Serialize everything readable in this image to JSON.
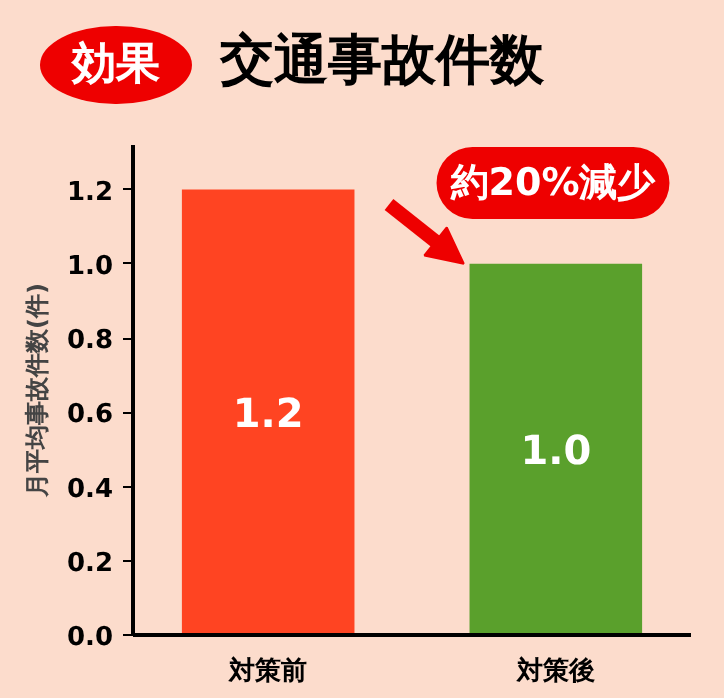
{
  "chart_data": {
    "type": "bar",
    "title": "交通事故件数",
    "subtitle": "効果",
    "ylabel": "月平均事故件数(件)",
    "categories": [
      "対策前",
      "対策後"
    ],
    "values": [
      1.2,
      1.0
    ],
    "colors": [
      "#ff4422",
      "#5aa02c"
    ],
    "value_labels": [
      "1.2",
      "1.0"
    ],
    "ylim": [
      0,
      1.32
    ],
    "yticks": [
      {
        "value": 0,
        "label": "0.0"
      },
      0.2,
      0.4,
      0.6,
      0.8,
      {
        "value": 1,
        "label": "1.0"
      },
      1.2
    ],
    "annotations": [
      "約20%減少"
    ],
    "grid": false
  }
}
